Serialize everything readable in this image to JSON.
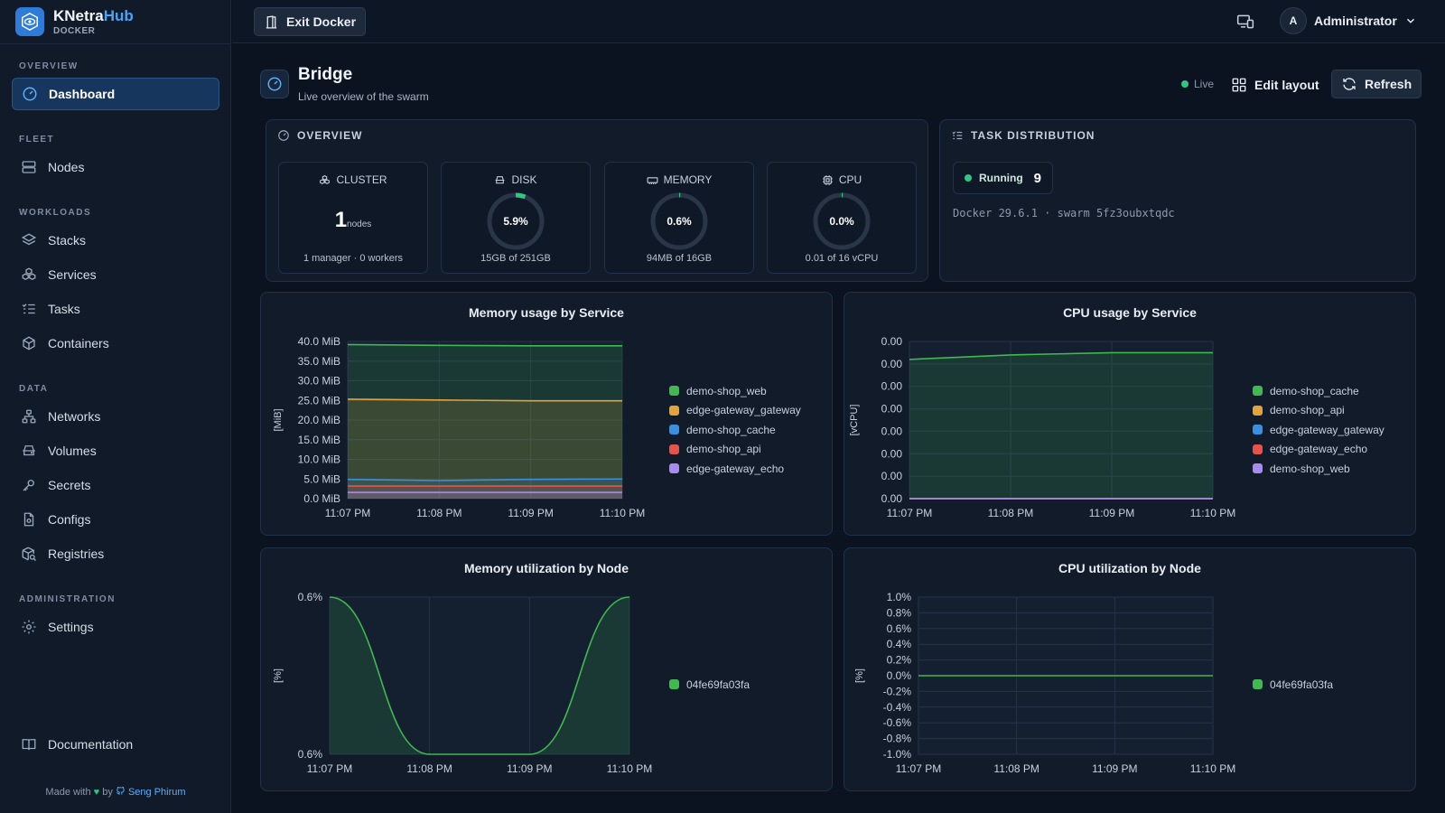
{
  "app": {
    "name_main": "KNetra",
    "name_accent": "Hub",
    "subtitle": "DOCKER"
  },
  "sidebar": {
    "sections": {
      "overview": "OVERVIEW",
      "fleet": "FLEET",
      "workloads": "WORKLOADS",
      "data": "DATA",
      "administration": "ADMINISTRATION"
    },
    "items": {
      "dashboard": "Dashboard",
      "nodes": "Nodes",
      "stacks": "Stacks",
      "services": "Services",
      "tasks": "Tasks",
      "containers": "Containers",
      "networks": "Networks",
      "volumes": "Volumes",
      "secrets": "Secrets",
      "configs": "Configs",
      "registries": "Registries",
      "settings": "Settings",
      "documentation": "Documentation"
    },
    "footer": {
      "made_with": "Made with",
      "by": "by",
      "author": "Seng Phirum"
    }
  },
  "topbar": {
    "exit_label": "Exit Docker",
    "user_initial": "A",
    "user_name": "Administrator"
  },
  "page": {
    "title": "Bridge",
    "subtitle": "Live overview of the swarm",
    "live_label": "Live",
    "edit_label": "Edit layout",
    "refresh_label": "Refresh"
  },
  "overview": {
    "header": "OVERVIEW",
    "cluster": {
      "label": "CLUSTER",
      "value": "1",
      "unit": "nodes",
      "foot": "1 manager · 0 workers"
    },
    "disk": {
      "label": "DISK",
      "value": "5.9%",
      "fraction": 0.059,
      "foot": "15GB of 251GB"
    },
    "memory": {
      "label": "MEMORY",
      "value": "0.6%",
      "fraction": 0.006,
      "foot": "94MB of 16GB"
    },
    "cpu": {
      "label": "CPU",
      "value": "0.0%",
      "fraction": 0.0,
      "foot": "0.01 of 16 vCPU"
    }
  },
  "tasks": {
    "header": "TASK DISTRIBUTION",
    "state": "Running",
    "count": "9",
    "docker_info": "Docker 29.6.1 · swarm 5fz3oubxtqdc"
  },
  "colors": {
    "accent": "#2f7bd8",
    "green": "#2fc781",
    "panel": "#111b2a"
  },
  "chart_data": [
    {
      "id": "mem-service",
      "type": "area",
      "title": "Memory usage by Service",
      "ylabel": "[MiB]",
      "x": [
        "11:07 PM",
        "11:08 PM",
        "11:09 PM",
        "11:10 PM"
      ],
      "y_ticks": [
        "0.0 MiB",
        "5.0 MiB",
        "10.0 MiB",
        "15.0 MiB",
        "20.0 MiB",
        "25.0 MiB",
        "30.0 MiB",
        "35.0 MiB",
        "40.0 MiB"
      ],
      "ylim": [
        0,
        40
      ],
      "series": [
        {
          "name": "demo-shop_web",
          "color": "#3fb950",
          "values": [
            39.2,
            39.0,
            38.9,
            38.9
          ]
        },
        {
          "name": "edge-gateway_gateway",
          "color": "#e3a23a",
          "values": [
            25.3,
            25.1,
            24.9,
            24.9
          ]
        },
        {
          "name": "demo-shop_cache",
          "color": "#3b8fe0",
          "values": [
            4.9,
            4.6,
            4.9,
            5.0
          ]
        },
        {
          "name": "demo-shop_api",
          "color": "#e5534b",
          "values": [
            3.2,
            3.2,
            3.2,
            3.2
          ]
        },
        {
          "name": "edge-gateway_echo",
          "color": "#a88af0",
          "values": [
            1.6,
            1.6,
            1.6,
            1.6
          ]
        }
      ]
    },
    {
      "id": "cpu-service",
      "type": "area",
      "title": "CPU usage by Service",
      "ylabel": "[vCPU]",
      "x": [
        "11:07 PM",
        "11:08 PM",
        "11:09 PM",
        "11:10 PM"
      ],
      "y_ticks": [
        "0.00",
        "0.00",
        "0.00",
        "0.00",
        "0.00",
        "0.00",
        "0.00",
        "0.00"
      ],
      "ylim": [
        0,
        0.007
      ],
      "series": [
        {
          "name": "demo-shop_cache",
          "color": "#3fb950",
          "values": [
            0.0062,
            0.0064,
            0.0065,
            0.0065
          ]
        },
        {
          "name": "demo-shop_api",
          "color": "#e3a23a",
          "values": [
            0.0,
            0.0,
            0.0,
            0.0
          ]
        },
        {
          "name": "edge-gateway_gateway",
          "color": "#3b8fe0",
          "values": [
            0.0,
            0.0,
            0.0,
            0.0
          ]
        },
        {
          "name": "edge-gateway_echo",
          "color": "#e5534b",
          "values": [
            0.0,
            0.0,
            0.0,
            0.0
          ]
        },
        {
          "name": "demo-shop_web",
          "color": "#a88af0",
          "values": [
            0.0,
            0.0,
            0.0,
            0.0
          ]
        }
      ]
    },
    {
      "id": "mem-node",
      "type": "area",
      "title": "Memory utilization by Node",
      "ylabel": "[%]",
      "x": [
        "11:07 PM",
        "11:08 PM",
        "11:09 PM",
        "11:10 PM"
      ],
      "y_ticks": [
        "0.6%",
        "0.6%"
      ],
      "ylim": [
        0.5895,
        0.5905
      ],
      "series": [
        {
          "name": "04fe69fa03fa",
          "color": "#3fb950",
          "values": [
            0.5905,
            0.5895,
            0.5895,
            0.5905
          ]
        }
      ]
    },
    {
      "id": "cpu-node",
      "type": "line",
      "title": "CPU utilization by Node",
      "ylabel": "[%]",
      "x": [
        "11:07 PM",
        "11:08 PM",
        "11:09 PM",
        "11:10 PM"
      ],
      "y_ticks": [
        "-1.0%",
        "-0.8%",
        "-0.6%",
        "-0.4%",
        "-0.2%",
        "0.0%",
        "0.2%",
        "0.4%",
        "0.6%",
        "0.8%",
        "1.0%"
      ],
      "ylim": [
        -1,
        1
      ],
      "series": [
        {
          "name": "04fe69fa03fa",
          "color": "#3fb950",
          "values": [
            0,
            0,
            0,
            0
          ]
        }
      ]
    }
  ]
}
